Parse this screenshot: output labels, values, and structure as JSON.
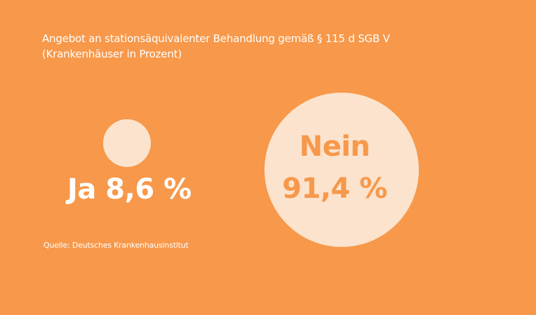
{
  "chart_data": {
    "type": "bubble",
    "title": "Angebot an stationsäquivalenter Behandlung gemäß § 115 d SGB V",
    "subtitle": "(Krankenhäuser in Prozent)",
    "unit": "%",
    "categories": [
      "Ja",
      "Nein"
    ],
    "values": [
      8.6,
      91.4
    ],
    "labels": {
      "ja": "Ja 8,6 %",
      "nein_name": "Nein",
      "nein_value": "91,4 %"
    },
    "source": "Quelle: Deutsches Krankenhausinstitut"
  },
  "colors": {
    "background": "#F7984A",
    "bubble": "#FCE3CD",
    "text_light": "#FFFFFF",
    "text_accent": "#F7984A"
  }
}
